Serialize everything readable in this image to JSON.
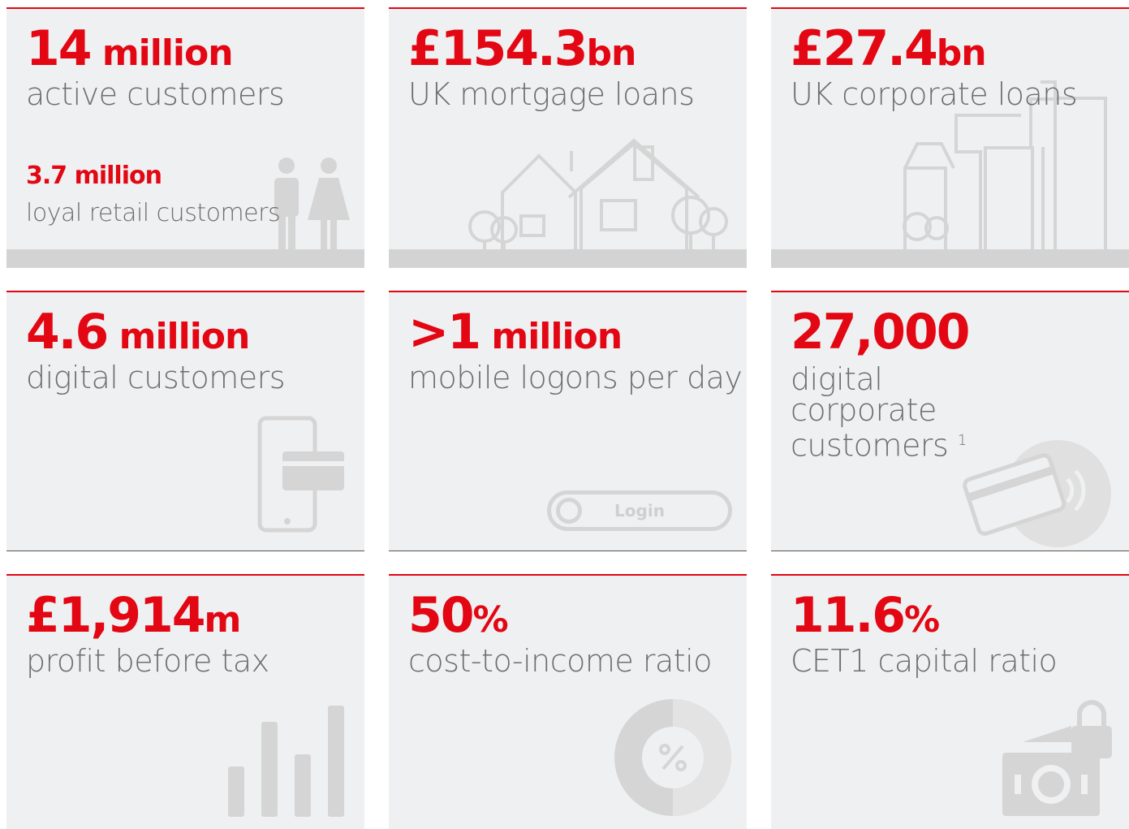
{
  "tiles": [
    {
      "value": "14",
      "unit": " million",
      "label": "active customers",
      "sub_value": "3.7 million",
      "sub_label": "loyal retail customers"
    },
    {
      "value": "£154.3",
      "unit": "bn",
      "label": "UK mortgage loans"
    },
    {
      "value": "£27.4",
      "unit": "bn",
      "label": "UK corporate loans"
    },
    {
      "value": "4.6",
      "unit": " million",
      "label": "digital customers"
    },
    {
      "value": ">1",
      "unit": " million",
      "label": "mobile logons per day",
      "button": "Login"
    },
    {
      "value": "27,000",
      "label": "digital corporate customers",
      "note": "1"
    },
    {
      "value": "£1,914",
      "unit": "m",
      "label": "profit before tax"
    },
    {
      "value": "50",
      "unit": "%",
      "label": "cost-to-income ratio"
    },
    {
      "value": "11.6",
      "unit": "%",
      "label": "CET1 capital ratio"
    }
  ]
}
